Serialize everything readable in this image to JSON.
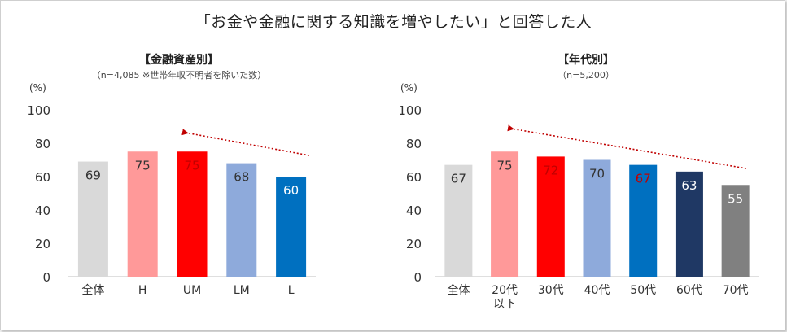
{
  "title": "「お金や金融に関する知識を増やしたい」と回答した人",
  "chart_data": [
    {
      "type": "bar",
      "heading": "【金融資産別】",
      "note": "（n=4,085 ※世帯年収不明者を除いた数）",
      "ylabel": "(%)",
      "ylim": [
        0,
        100
      ],
      "yticks": [
        0,
        20,
        40,
        60,
        80,
        100
      ],
      "grid": false,
      "categories": [
        "全体",
        "H",
        "UM",
        "LM",
        "L"
      ],
      "values": [
        69,
        75,
        75,
        68,
        60
      ],
      "colors": [
        "#d9d9d9",
        "#ff9999",
        "#ff0000",
        "#8eaadb",
        "#0070c0"
      ],
      "label_colors": [
        "#333333",
        "#333333",
        "#c00000",
        "#333333",
        "#ffffff"
      ]
    },
    {
      "type": "bar",
      "heading": "【年代別】",
      "note": "（n=5,200）",
      "ylabel": "(%)",
      "ylim": [
        0,
        100
      ],
      "yticks": [
        0,
        20,
        40,
        60,
        80,
        100
      ],
      "grid": false,
      "categories": [
        "全体",
        "20代\n以下",
        "30代",
        "40代",
        "50代",
        "60代",
        "70代"
      ],
      "values": [
        67,
        75,
        72,
        70,
        67,
        63,
        55
      ],
      "colors": [
        "#d9d9d9",
        "#ff9999",
        "#ff0000",
        "#8eaadb",
        "#0070c0",
        "#1f3864",
        "#808080"
      ],
      "label_colors": [
        "#333333",
        "#333333",
        "#c00000",
        "#333333",
        "#c00000",
        "#ffffff",
        "#ffffff"
      ]
    }
  ]
}
